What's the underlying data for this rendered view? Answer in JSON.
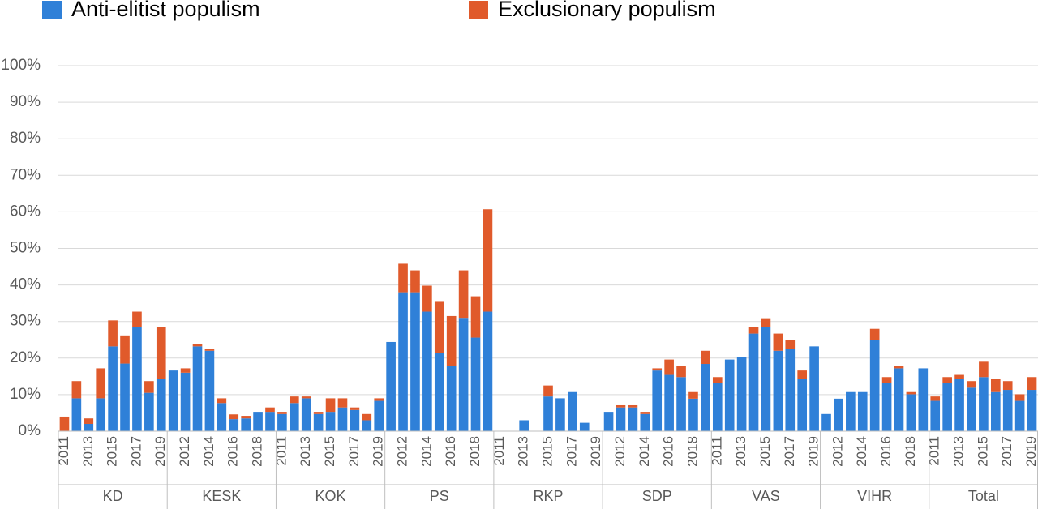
{
  "chart_data": {
    "type": "bar",
    "stacked": true,
    "groups": [
      "KD",
      "KESK",
      "KOK",
      "PS",
      "RKP",
      "SDP",
      "VAS",
      "VIHR",
      "Total"
    ],
    "categories": [
      "2011",
      null,
      "2013",
      null,
      "2015",
      null,
      "2017",
      null,
      "2019",
      null,
      "2012",
      null,
      "2014",
      null,
      "2016",
      null,
      "2018",
      null,
      "2011",
      null,
      "2013",
      null,
      "2015",
      null,
      "2017",
      null,
      "2019",
      null,
      "2012",
      null,
      "2014",
      null,
      "2016",
      null,
      "2018",
      null,
      "2011",
      null,
      "2013",
      null,
      "2015",
      null,
      "2017",
      null,
      "2019",
      null,
      "2012",
      null,
      "2014",
      null,
      "2016",
      null,
      "2018",
      null,
      "2011",
      null,
      "2013",
      null,
      "2015",
      null,
      "2017",
      null,
      "2019",
      null,
      "2012",
      null,
      "2014",
      null,
      "2016",
      null,
      "2018",
      null,
      "2011",
      null,
      "2013",
      null,
      "2015",
      null,
      "2017",
      null,
      "2019"
    ],
    "series": [
      {
        "name": "Anti-elitist populism",
        "color": "#2f80d8",
        "values": [
          0,
          9,
          2,
          9,
          23.2,
          18.5,
          28.5,
          10.5,
          14.3,
          16.6,
          16,
          23.2,
          22,
          7.7,
          3.3,
          3.5,
          5.3,
          5.3,
          4.7,
          7.7,
          9,
          4.7,
          5.3,
          6.5,
          5.8,
          3,
          8.3,
          24.4,
          38,
          38,
          32.7,
          21.5,
          17.8,
          31,
          25.6,
          32.7,
          0,
          0,
          3,
          0,
          9.5,
          9,
          10.7,
          2.3,
          0,
          5.3,
          6.5,
          6.5,
          4.7,
          16.6,
          15.4,
          14.8,
          8.9,
          18.4,
          13.1,
          19.6,
          20.2,
          26.7,
          28.5,
          22,
          22.6,
          14.2,
          23.2,
          4.7,
          8.9,
          10.7,
          10.7,
          24.9,
          13.1,
          17.2,
          10.1,
          17.2,
          8.3,
          13.1,
          14.2,
          11.9,
          14.8,
          10.7,
          11.3,
          8.3,
          11.3
        ]
      },
      {
        "name": "Exclusionary populism",
        "color": "#e05a2b",
        "values": [
          4,
          4.7,
          1.5,
          8.2,
          7.1,
          7.7,
          4.2,
          3.2,
          14.3,
          0,
          1.2,
          0.6,
          0.6,
          1.3,
          1.3,
          0.7,
          0,
          1.2,
          0.6,
          1.8,
          0.5,
          0.6,
          3.7,
          2.5,
          0.7,
          1.7,
          0.7,
          0,
          7.8,
          6,
          7.1,
          14.1,
          13.7,
          13,
          11.3,
          28,
          0,
          0,
          0,
          0,
          3,
          0,
          0,
          0,
          0,
          0,
          0.6,
          0.6,
          0.6,
          0.6,
          4.2,
          3,
          1.8,
          3.6,
          1.7,
          0,
          0,
          1.8,
          2.4,
          4.7,
          2.3,
          2.4,
          0,
          0,
          0,
          0,
          0,
          3.1,
          1.7,
          0.6,
          0.6,
          0,
          1.2,
          1.7,
          1.2,
          1.8,
          4.2,
          3.5,
          2.4,
          1.8,
          3.5
        ]
      }
    ],
    "ylim": [
      0,
      100
    ],
    "yticks": [
      {
        "value": 0,
        "label": "0%"
      },
      {
        "value": 10,
        "label": "10%"
      },
      {
        "value": 20,
        "label": "20%"
      },
      {
        "value": 30,
        "label": "30%"
      },
      {
        "value": 40,
        "label": "40%"
      },
      {
        "value": 50,
        "label": "50%"
      },
      {
        "value": 60,
        "label": "60%"
      },
      {
        "value": 70,
        "label": "70%"
      },
      {
        "value": 80,
        "label": "80%"
      },
      {
        "value": 90,
        "label": "90%"
      },
      {
        "value": 100,
        "label": "100%"
      }
    ],
    "grid": true,
    "legend": "top"
  }
}
